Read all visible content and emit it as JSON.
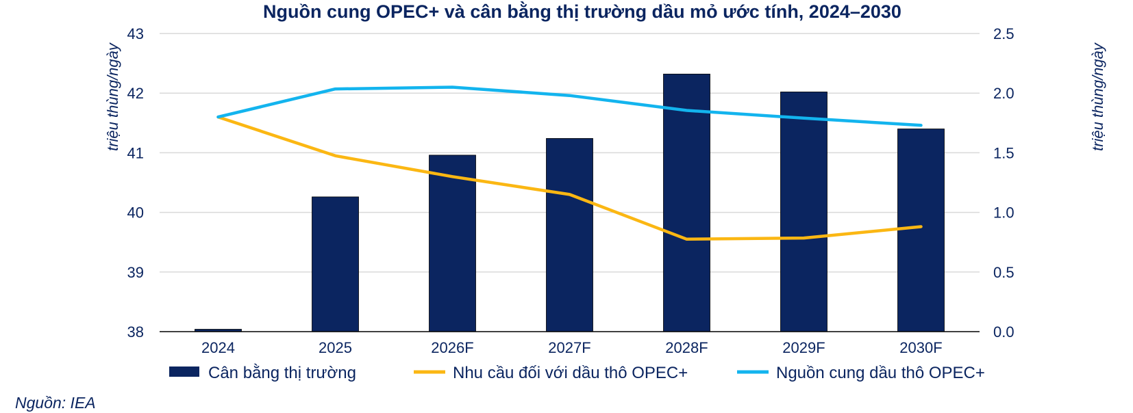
{
  "chart_data": {
    "type": "bar",
    "title": "Nguồn cung OPEC+ và cân bằng thị trường dầu mỏ ước tính, 2024–2030",
    "ylabel_left": "triệu thùng/ngày",
    "ylabel_right": "triệu thùng/ngày",
    "categories": [
      "2024",
      "2025",
      "2026F",
      "2027F",
      "2028F",
      "2029F",
      "2030F"
    ],
    "ylim_left": [
      38,
      43
    ],
    "yticks_left": [
      "38",
      "39",
      "40",
      "41",
      "42",
      "43"
    ],
    "ylim_right": [
      0,
      2.5
    ],
    "yticks_right": [
      "0.0",
      "0.5",
      "1.0",
      "1.5",
      "2.0",
      "2.5"
    ],
    "grid": true,
    "legend_position": "bottom",
    "series": [
      {
        "name": "Cân bằng thị trường",
        "kind": "bar",
        "axis": "right",
        "color": "#0b2560",
        "values": [
          0.02,
          1.13,
          1.48,
          1.62,
          2.16,
          2.01,
          1.7
        ]
      },
      {
        "name": "Nhu cầu đối với dầu thô OPEC+",
        "kind": "line",
        "axis": "left",
        "color": "#fbb713",
        "values": [
          41.6,
          40.95,
          40.6,
          40.3,
          39.55,
          39.57,
          39.76
        ]
      },
      {
        "name": "Nguồn cung dầu thô OPEC+",
        "kind": "line",
        "axis": "left",
        "color": "#13b4ee",
        "values": [
          41.6,
          42.07,
          42.1,
          41.96,
          41.71,
          41.58,
          41.46
        ]
      }
    ]
  },
  "source_note": "Nguồn: IEA"
}
